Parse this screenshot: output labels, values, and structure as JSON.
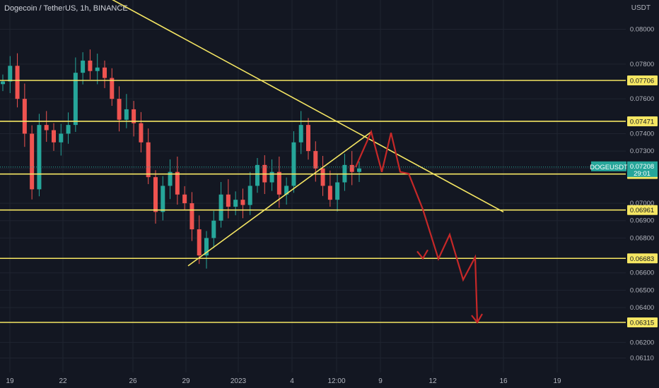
{
  "header": {
    "title": "Dogecoin / TetherUS, 1h, BINANCE",
    "currency": "USDT"
  },
  "colors": {
    "background": "#131722",
    "grid": "#1f2430",
    "level_line": "#f5e663",
    "level_label_bg": "#f5e663",
    "projection": "#c62828",
    "candle_up": "#26a69a",
    "candle_down": "#ef5350",
    "current_price_bg": "#26a69a"
  },
  "chart_data": {
    "type": "candlestick",
    "symbol": "DOGEUSDT",
    "y_axis_ticks": [
      "0.08000",
      "0.07800",
      "0.07600",
      "0.07400",
      "0.07300",
      "0.07200",
      "0.07000",
      "0.06900",
      "0.06800",
      "0.06600",
      "0.06500",
      "0.06400",
      "0.06200",
      "0.06110"
    ],
    "x_axis_ticks": [
      "19",
      "22",
      "26",
      "29",
      "2023",
      "4",
      "12:00",
      "9",
      "12",
      "16",
      "19"
    ],
    "horizontal_levels": [
      "0.07706",
      "0.07471",
      "0.07168",
      "0.06961",
      "0.06683",
      "0.06315"
    ],
    "current_price": {
      "symbol": "DOGEUSDT",
      "price": "0.07208",
      "countdown": "29:01"
    },
    "trendlines": [
      {
        "name": "descending resistance",
        "from": [
          "19",
          0.0849
        ],
        "to": [
          "16",
          0.0695
        ]
      },
      {
        "name": "ascending support",
        "from": [
          "30",
          0.0664
        ],
        "to": [
          "7",
          0.0741
        ]
      }
    ],
    "projection_path": [
      0.07208,
      0.0741,
      0.0718,
      0.07405,
      0.0718,
      0.0717,
      0.06965,
      0.0668,
      0.0682,
      0.0656,
      0.0669,
      0.06315
    ],
    "price_path_close": [
      0.077,
      0.0779,
      0.076,
      0.074,
      0.0708,
      0.0745,
      0.0742,
      0.0735,
      0.074,
      0.0745,
      0.0775,
      0.0782,
      0.0776,
      0.0778,
      0.0772,
      0.076,
      0.0748,
      0.0754,
      0.0746,
      0.0735,
      0.0715,
      0.0695,
      0.071,
      0.0718,
      0.0705,
      0.07,
      0.0685,
      0.067,
      0.068,
      0.069,
      0.0705,
      0.0698,
      0.0702,
      0.0699,
      0.071,
      0.0722,
      0.0712,
      0.0718,
      0.0705,
      0.071,
      0.0735,
      0.0745,
      0.073,
      0.072,
      0.071,
      0.0702,
      0.0712,
      0.0722,
      0.0718,
      0.072
    ]
  }
}
